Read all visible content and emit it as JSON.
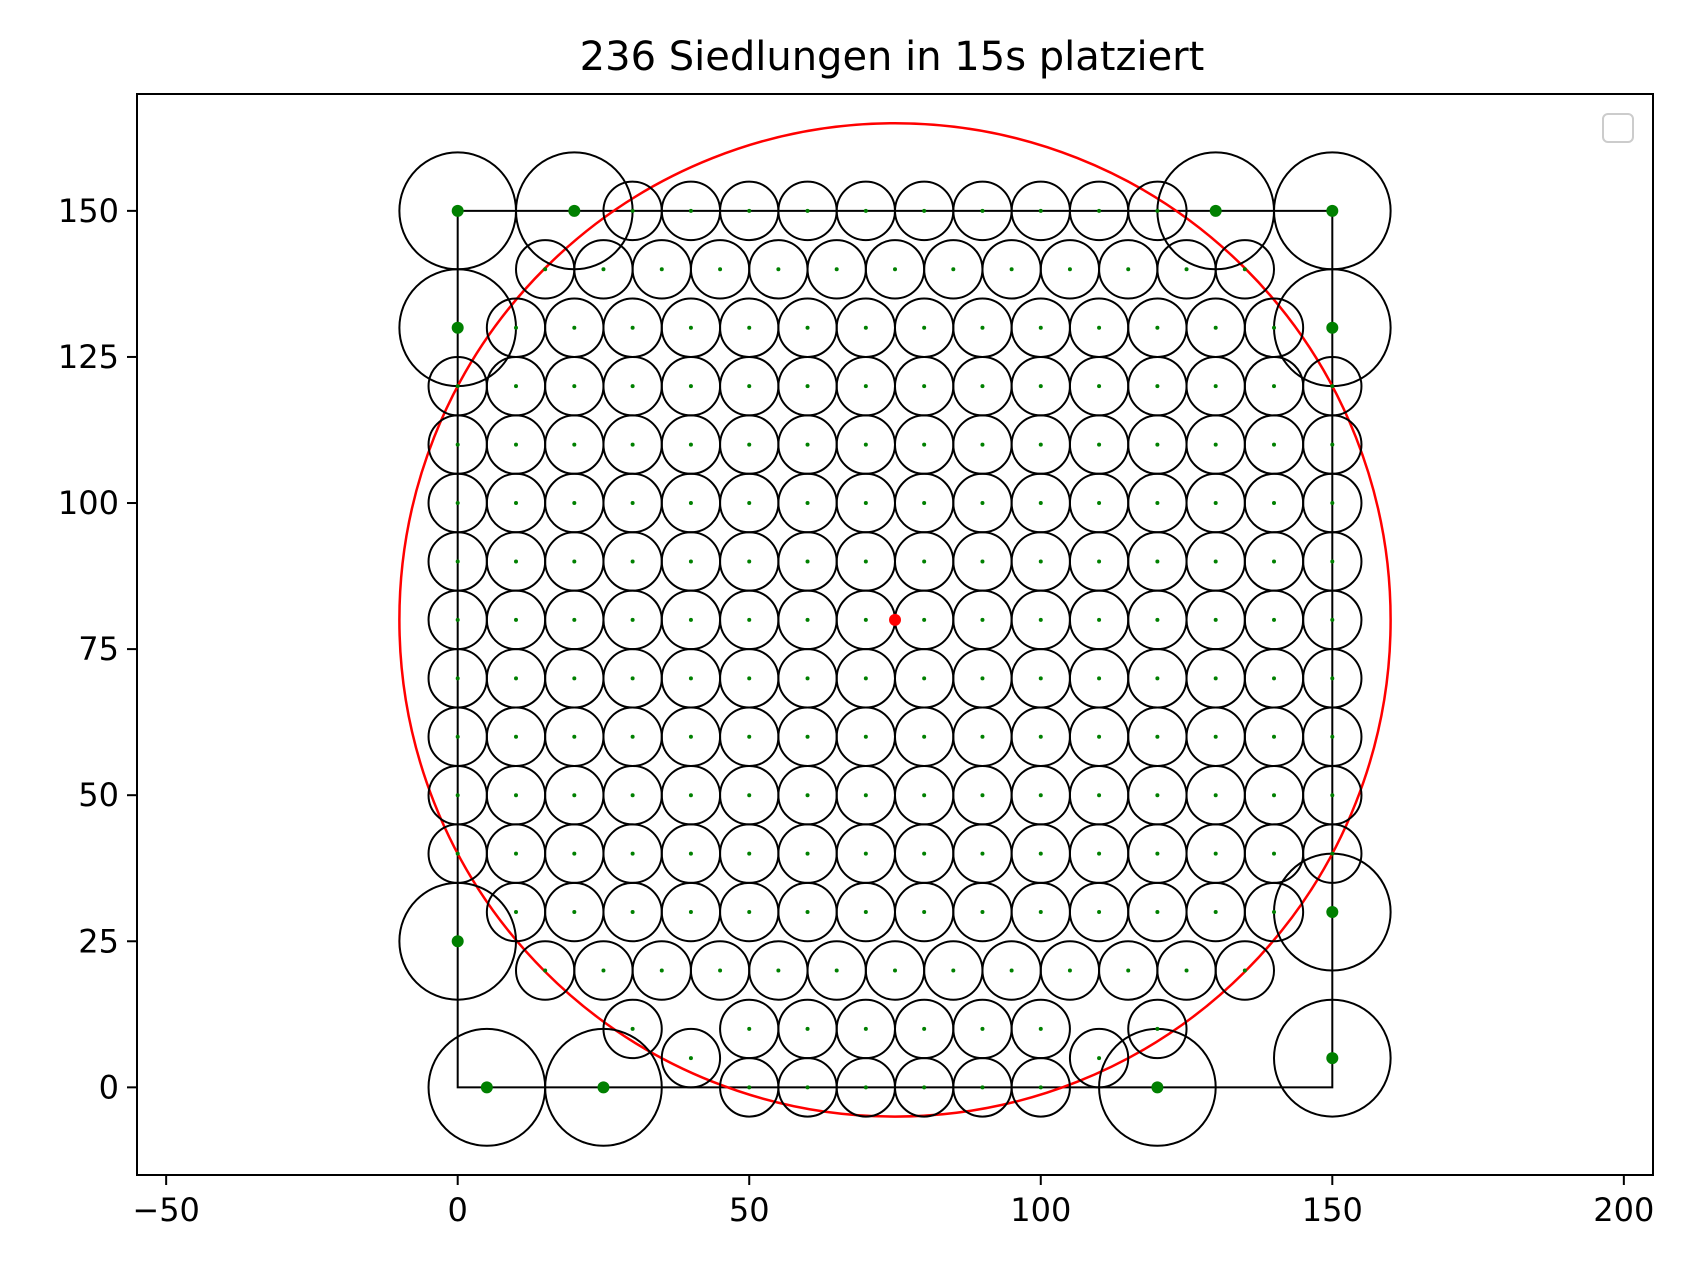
{
  "chart_data": {
    "type": "scatter",
    "title": "236 Siedlungen in 15s platziert",
    "xlabel": "",
    "ylabel": "",
    "xlim": [
      -55,
      205
    ],
    "ylim": [
      -15,
      170
    ],
    "xticks": [
      -50,
      0,
      50,
      100,
      150,
      200
    ],
    "yticks": [
      0,
      25,
      50,
      75,
      100,
      125,
      150
    ],
    "xtick_labels": [
      "−50",
      "0",
      "50",
      "100",
      "150",
      "200"
    ],
    "ytick_labels": [
      "0",
      "25",
      "50",
      "75",
      "100",
      125,
      "150"
    ],
    "grid": false,
    "legend": {
      "placement": "upper right",
      "entries": []
    },
    "bounding_square": {
      "x0": 0,
      "y0": 0,
      "x1": 150,
      "y1": 150
    },
    "range_circle": {
      "cx": 75,
      "cy": 80,
      "r": 85
    },
    "center": {
      "x": 75,
      "y": 80
    },
    "large_radius": 10,
    "small_radius": 5,
    "large_settlements": [
      [
        0,
        150
      ],
      [
        20,
        150
      ],
      [
        130,
        150
      ],
      [
        150,
        150
      ],
      [
        0,
        130
      ],
      [
        150,
        130
      ],
      [
        0,
        25
      ],
      [
        150,
        30
      ],
      [
        5,
        0
      ],
      [
        25,
        0
      ],
      [
        120,
        0
      ],
      [
        150,
        5
      ]
    ],
    "row_150": [
      30,
      40,
      50,
      60,
      70,
      80,
      90,
      100,
      110,
      120
    ],
    "row_140": [
      15,
      25,
      35,
      45,
      55,
      65,
      75,
      85,
      95,
      105,
      115,
      125,
      135
    ],
    "row_130": [
      10,
      20,
      30,
      40,
      50,
      60,
      70,
      80,
      90,
      100,
      110,
      120,
      130,
      140
    ],
    "full_rows_y": [
      40,
      50,
      60,
      70,
      80,
      90,
      100,
      110,
      120
    ],
    "full_rows_x": [
      0,
      10,
      20,
      30,
      40,
      50,
      60,
      70,
      80,
      90,
      100,
      110,
      120,
      130,
      140,
      150
    ],
    "row_30": [
      10,
      20,
      30,
      40,
      50,
      60,
      70,
      80,
      90,
      100,
      110,
      120,
      130,
      140
    ],
    "row_20": [
      15,
      25,
      35,
      45,
      55,
      65,
      75,
      85,
      95,
      105,
      115,
      125,
      135
    ],
    "row_10": [
      30,
      50,
      60,
      70,
      80,
      90,
      100,
      120
    ],
    "row_5": [
      40,
      110
    ],
    "row_0": [
      50,
      60,
      70,
      80,
      90,
      100
    ],
    "colors": {
      "circle": "#000000",
      "settlement": "#008000",
      "range_circle": "#ff0000",
      "center": "#ff0000",
      "square": "#000000"
    }
  }
}
